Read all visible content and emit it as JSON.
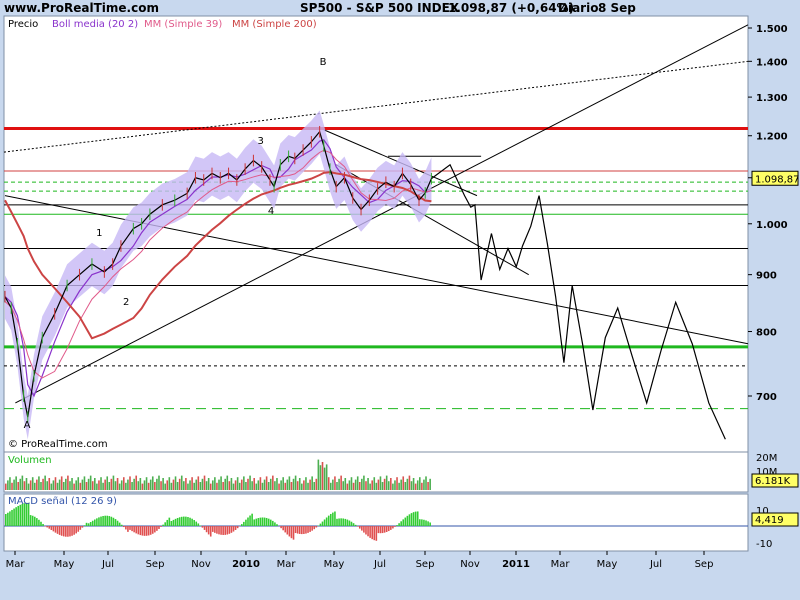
{
  "header": {
    "site": "www.ProRealTime.com",
    "instrument": "SP500 - S&P 500 INDEX",
    "last": "1.098,87 (+0,64%)",
    "period": "Diario",
    "date": "8 Sep"
  },
  "colors": {
    "background": "#c8d8ee",
    "panel": "#ffffff",
    "price": "#000000",
    "boll_band": "#c7b8f5",
    "boll_mid": "#8a33cc",
    "mm39": "#e05a8a",
    "mm200": "#cc4444",
    "support_strong": "#1fb81f",
    "resistance_strong": "#e01010",
    "volume_up": "#4caf50",
    "volume_down": "#d9534f",
    "macd_up": "#33cc33",
    "macd_down": "#e05050"
  },
  "chart_data": [
    {
      "type": "line",
      "panel": "price",
      "title": "SP500 - S&P 500 INDEX",
      "legend": [
        "Precio",
        "Boll media (20 2)",
        "MM (Simple 39)",
        "MM (Simple 200)"
      ],
      "annotations": [
        "B",
        "3",
        "4",
        "1",
        "2",
        "A"
      ],
      "watermark": "© ProRealTime.com",
      "last_value_label": "1.098,87",
      "y_ticks": [
        "1.500",
        "1.400",
        "1.300",
        "1.200",
        "1.100",
        "1.000",
        "900",
        "800",
        "700"
      ],
      "x_ticks": [
        "Mar",
        "May",
        "Jul",
        "Sep",
        "Nov",
        "2010",
        "Mar",
        "May",
        "Jul",
        "Sep",
        "Nov",
        "2011",
        "Mar",
        "May",
        "Jul",
        "Sep"
      ],
      "ylim": [
        660,
        1540
      ],
      "scale": "log",
      "price_path": [
        [
          0,
          860
        ],
        [
          3,
          840
        ],
        [
          6,
          780
        ],
        [
          9,
          700
        ],
        [
          11,
          670
        ],
        [
          14,
          730
        ],
        [
          18,
          790
        ],
        [
          24,
          830
        ],
        [
          30,
          880
        ],
        [
          36,
          900
        ],
        [
          42,
          920
        ],
        [
          48,
          905
        ],
        [
          52,
          920
        ],
        [
          56,
          955
        ],
        [
          62,
          990
        ],
        [
          66,
          1000
        ],
        [
          70,
          1020
        ],
        [
          76,
          1040
        ],
        [
          82,
          1050
        ],
        [
          88,
          1065
        ],
        [
          92,
          1100
        ],
        [
          96,
          1095
        ],
        [
          100,
          1110
        ],
        [
          104,
          1100
        ],
        [
          108,
          1110
        ],
        [
          112,
          1095
        ],
        [
          116,
          1120
        ],
        [
          120,
          1140
        ],
        [
          124,
          1125
        ],
        [
          128,
          1095
        ],
        [
          130,
          1080
        ],
        [
          133,
          1130
        ],
        [
          137,
          1150
        ],
        [
          140,
          1145
        ],
        [
          144,
          1165
        ],
        [
          148,
          1185
        ],
        [
          152,
          1210
        ],
        [
          154,
          1175
        ],
        [
          157,
          1120
        ],
        [
          160,
          1080
        ],
        [
          164,
          1100
        ],
        [
          168,
          1055
        ],
        [
          172,
          1030
        ],
        [
          176,
          1050
        ],
        [
          180,
          1075
        ],
        [
          184,
          1090
        ],
        [
          188,
          1080
        ],
        [
          192,
          1110
        ],
        [
          196,
          1085
        ],
        [
          200,
          1050
        ],
        [
          203,
          1066
        ],
        [
          206,
          1098
        ]
      ],
      "projection_path": [
        [
          206,
          1098
        ],
        [
          215,
          1130
        ],
        [
          222,
          1060
        ],
        [
          225,
          1035
        ],
        [
          227,
          1040
        ],
        [
          230,
          890
        ],
        [
          235,
          980
        ],
        [
          239,
          910
        ],
        [
          243,
          950
        ],
        [
          247,
          915
        ],
        [
          250,
          955
        ],
        [
          254,
          995
        ],
        [
          258,
          1060
        ],
        [
          262,
          960
        ],
        [
          266,
          860
        ],
        [
          270,
          750
        ],
        [
          274,
          880
        ],
        [
          279,
          780
        ],
        [
          284,
          680
        ],
        [
          290,
          790
        ],
        [
          296,
          840
        ],
        [
          303,
          760
        ],
        [
          310,
          690
        ],
        [
          317,
          770
        ],
        [
          324,
          850
        ],
        [
          332,
          780
        ],
        [
          340,
          690
        ],
        [
          348,
          640
        ]
      ],
      "support_lines": [
        1115.6,
        1090,
        1070,
        1050,
        1040,
        950,
        880,
        775,
        745,
        682
      ],
      "resistance_line": 1218
    },
    {
      "type": "bar",
      "panel": "volume",
      "legend": [
        "Volumen"
      ],
      "y_ticks": [
        "20M",
        "10M",
        "6.181K"
      ],
      "last_value_label": "6.181K",
      "values_note": "bar series mostly between 4M and 10M, spike near May 2010 up to ~20M"
    },
    {
      "type": "bar",
      "panel": "macd",
      "legend": [
        "MACD señal (12 26 9)"
      ],
      "y_ticks": [
        "10",
        "4.419",
        "0",
        "-10"
      ],
      "last_value_label": "4,419"
    }
  ]
}
